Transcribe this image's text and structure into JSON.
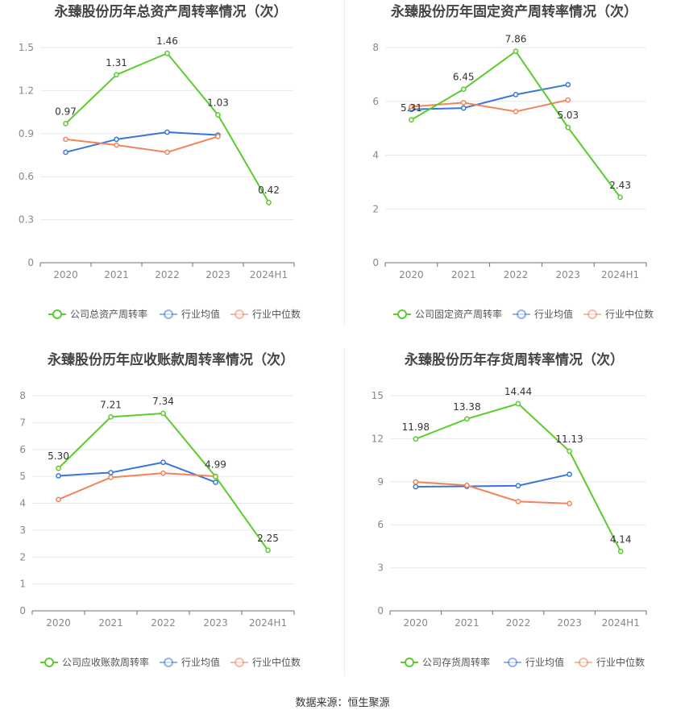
{
  "colors": {
    "company": "#5ccb2d",
    "avg": "#3a75d9",
    "median": "#f0845a",
    "grid": "#e6e9f0",
    "axis": "#6e7079",
    "label": "#888888",
    "title": "#444444"
  },
  "source": "数据来源：恒生聚源",
  "chart_data": [
    {
      "type": "line",
      "title": "永臻股份历年总资产周转率情况（次）",
      "categories": [
        "2020",
        "2021",
        "2022",
        "2023",
        "2024H1"
      ],
      "ylim": [
        0,
        1.5
      ],
      "yticks": [
        "0",
        "0.3",
        "0.6",
        "0.9",
        "1.2",
        "1.5"
      ],
      "legend_position": "bottom",
      "series": [
        {
          "name": "公司总资产周转率",
          "values": [
            0.97,
            1.31,
            1.46,
            1.03,
            0.42
          ],
          "labels": [
            "0.97",
            "1.31",
            "1.46",
            "1.03",
            "0.42"
          ]
        },
        {
          "name": "行业均值",
          "values": [
            0.77,
            0.86,
            0.91,
            0.89,
            null
          ]
        },
        {
          "name": "行业中位数",
          "values": [
            0.86,
            0.82,
            0.77,
            0.88,
            null
          ]
        }
      ]
    },
    {
      "type": "line",
      "title": "永臻股份历年固定资产周转率情况（次）",
      "categories": [
        "2020",
        "2021",
        "2022",
        "2023",
        "2024H1"
      ],
      "ylim": [
        0,
        8
      ],
      "yticks": [
        "0",
        "2",
        "4",
        "6",
        "8"
      ],
      "legend_position": "bottom",
      "series": [
        {
          "name": "公司固定资产周转率",
          "values": [
            5.31,
            6.45,
            7.86,
            5.03,
            2.43
          ],
          "labels": [
            "5.31",
            "6.45",
            "7.86",
            "5.03",
            "2.43"
          ]
        },
        {
          "name": "行业均值",
          "values": [
            5.7,
            5.75,
            6.25,
            6.62,
            null
          ]
        },
        {
          "name": "行业中位数",
          "values": [
            5.8,
            5.95,
            5.62,
            6.05,
            null
          ]
        }
      ]
    },
    {
      "type": "line",
      "title": "永臻股份历年应收账款周转率情况（次）",
      "categories": [
        "2020",
        "2021",
        "2022",
        "2023",
        "2024H1"
      ],
      "ylim": [
        0,
        8
      ],
      "yticks": [
        "0",
        "1",
        "2",
        "3",
        "4",
        "5",
        "6",
        "7",
        "8"
      ],
      "legend_position": "bottom",
      "series": [
        {
          "name": "公司应收账款周转率",
          "values": [
            5.3,
            7.21,
            7.34,
            4.99,
            2.25
          ],
          "labels": [
            "5.30",
            "7.21",
            "7.34",
            "4.99",
            "2.25"
          ]
        },
        {
          "name": "行业均值",
          "values": [
            5.02,
            5.14,
            5.52,
            4.78,
            null
          ]
        },
        {
          "name": "行业中位数",
          "values": [
            4.14,
            4.96,
            5.12,
            5.0,
            null
          ]
        }
      ]
    },
    {
      "type": "line",
      "title": "永臻股份历年存货周转率情况（次）",
      "categories": [
        "2020",
        "2021",
        "2022",
        "2023",
        "2024H1"
      ],
      "ylim": [
        0,
        15
      ],
      "yticks": [
        "0",
        "3",
        "6",
        "9",
        "12",
        "15"
      ],
      "legend_position": "bottom",
      "series": [
        {
          "name": "公司存货周转率",
          "values": [
            11.98,
            13.38,
            14.44,
            11.13,
            4.14
          ],
          "labels": [
            "11.98",
            "13.38",
            "14.44",
            "11.13",
            "4.14"
          ]
        },
        {
          "name": "行业均值",
          "values": [
            8.65,
            8.68,
            8.72,
            9.52,
            null
          ]
        },
        {
          "name": "行业中位数",
          "values": [
            8.98,
            8.75,
            7.62,
            7.48,
            null
          ]
        }
      ]
    }
  ]
}
